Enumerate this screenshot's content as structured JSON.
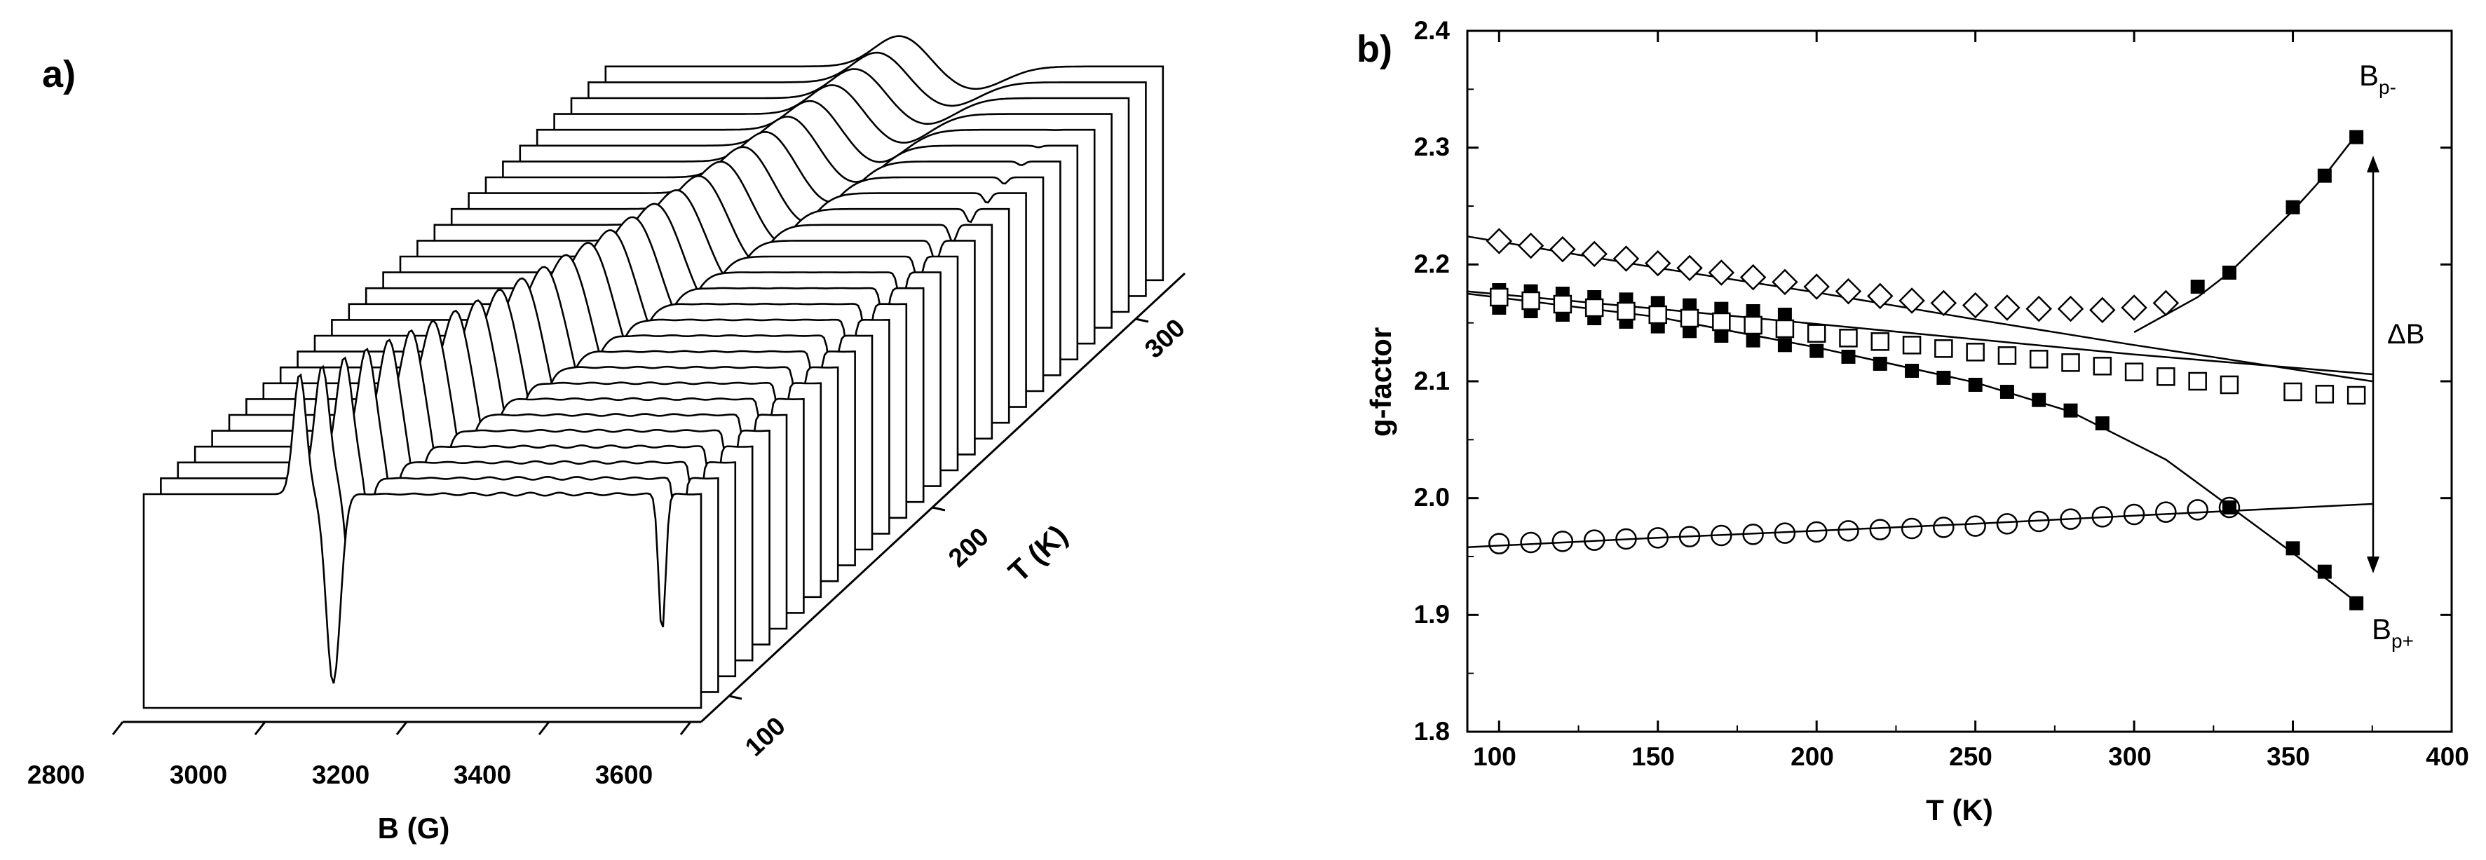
{
  "chart_data": [
    {
      "panel_label": "a)",
      "type": "waterfall",
      "xlabel": "B (G)",
      "zlabel": "T (K)",
      "x_ticks": [
        "2800",
        "3000",
        "3200",
        "3400",
        "3600"
      ],
      "x_range": [
        2800,
        3600
      ],
      "z_ticks": [
        "100",
        "200",
        "300"
      ],
      "temperatures": [
        100,
        110,
        120,
        130,
        140,
        150,
        160,
        170,
        180,
        190,
        200,
        210,
        220,
        230,
        240,
        250,
        260,
        270,
        280,
        290,
        300,
        310,
        320,
        330,
        340,
        350,
        360,
        370
      ],
      "features": {
        "low_temp_dip_field": 3580,
        "high_temp_peak_field": 3180
      }
    },
    {
      "panel_label": "b)",
      "type": "scatter",
      "xlabel": "T (K)",
      "ylabel": "g-factor",
      "xlim": [
        90,
        400
      ],
      "ylim": [
        1.8,
        2.4
      ],
      "x_ticks": [
        "100",
        "150",
        "200",
        "250",
        "300",
        "350",
        "400"
      ],
      "y_ticks": [
        "1.8",
        "1.9",
        "2.0",
        "2.1",
        "2.2",
        "2.3",
        "2.4"
      ],
      "annotations": {
        "bp_minus": {
          "main": "B",
          "sub": "p-"
        },
        "bp_plus": {
          "main": "B",
          "sub": "p+"
        },
        "delta_b": "ΔB"
      },
      "delta_b_range": [
        1.905,
        2.295
      ],
      "series": [
        {
          "marker": "diamond-open",
          "x": [
            100,
            110,
            120,
            130,
            140,
            150,
            160,
            170,
            180,
            190,
            200,
            210,
            220,
            230,
            240,
            250,
            260,
            270,
            280,
            290,
            300,
            310
          ],
          "y": [
            2.22,
            2.216,
            2.213,
            2.209,
            2.205,
            2.201,
            2.197,
            2.193,
            2.189,
            2.185,
            2.181,
            2.177,
            2.173,
            2.169,
            2.167,
            2.165,
            2.163,
            2.162,
            2.162,
            2.161,
            2.163,
            2.167
          ]
        },
        {
          "marker": "square-filled",
          "x": [
            100,
            110,
            120,
            130,
            140,
            150,
            160,
            170,
            180,
            190,
            200,
            210,
            220,
            230,
            240,
            250,
            260,
            270,
            280,
            290,
            320,
            330,
            350,
            360,
            370
          ],
          "y": [
            2.163,
            2.16,
            2.157,
            2.154,
            2.151,
            2.147,
            2.143,
            2.139,
            2.135,
            2.131,
            2.126,
            2.121,
            2.115,
            2.109,
            2.103,
            2.097,
            2.091,
            2.084,
            2.075,
            2.064,
            2.181,
            2.193,
            2.249,
            2.276,
            2.309
          ]
        },
        {
          "marker": "square-filled",
          "x": [
            100,
            110,
            120,
            130,
            140,
            150,
            160,
            170,
            180,
            190,
            330,
            350,
            360,
            370
          ],
          "y": [
            2.178,
            2.177,
            2.175,
            2.172,
            2.17,
            2.167,
            2.165,
            2.162,
            2.16,
            2.157,
            1.992,
            1.957,
            1.937,
            1.91
          ]
        },
        {
          "marker": "square-open",
          "x": [
            100,
            110,
            120,
            130,
            140,
            150,
            160,
            170,
            180,
            190,
            200,
            210,
            220,
            230,
            240,
            250,
            260,
            270,
            280,
            290,
            300,
            310,
            320,
            330,
            350,
            360,
            370
          ],
          "y": [
            2.172,
            2.169,
            2.166,
            2.163,
            2.16,
            2.157,
            2.154,
            2.151,
            2.148,
            2.145,
            2.141,
            2.137,
            2.134,
            2.131,
            2.128,
            2.125,
            2.122,
            2.119,
            2.116,
            2.113,
            2.108,
            2.104,
            2.1,
            2.097,
            2.091,
            2.089,
            2.088
          ]
        },
        {
          "marker": "circle-open",
          "x": [
            100,
            110,
            120,
            130,
            140,
            150,
            160,
            170,
            180,
            190,
            200,
            210,
            220,
            230,
            240,
            250,
            260,
            270,
            280,
            290,
            300,
            310,
            320,
            330
          ],
          "y": [
            1.961,
            1.962,
            1.963,
            1.964,
            1.965,
            1.966,
            1.967,
            1.968,
            1.969,
            1.97,
            1.971,
            1.972,
            1.973,
            1.974,
            1.975,
            1.976,
            1.978,
            1.98,
            1.982,
            1.984,
            1.986,
            1.988,
            1.99,
            1.992
          ]
        }
      ],
      "fit_lines": [
        {
          "x": [
            90,
            150,
            200,
            250,
            300,
            375
          ],
          "y": [
            1.958,
            1.966,
            1.972,
            1.978,
            1.985,
            1.995
          ]
        },
        {
          "x": [
            90,
            150,
            200,
            250,
            300,
            375
          ],
          "y": [
            2.177,
            2.162,
            2.149,
            2.136,
            2.123,
            2.106
          ]
        },
        {
          "x": [
            90,
            150,
            200,
            250,
            300,
            375
          ],
          "y": [
            2.224,
            2.197,
            2.176,
            2.153,
            2.131,
            2.1
          ]
        },
        {
          "x": [
            90,
            150,
            200,
            250,
            280,
            310,
            330,
            350,
            370
          ],
          "y": [
            2.175,
            2.155,
            2.129,
            2.099,
            2.074,
            2.033,
            1.993,
            1.953,
            1.911
          ]
        },
        {
          "x": [
            300,
            320,
            330,
            350,
            360,
            370
          ],
          "y": [
            2.142,
            2.172,
            2.193,
            2.246,
            2.276,
            2.311
          ]
        }
      ]
    }
  ]
}
